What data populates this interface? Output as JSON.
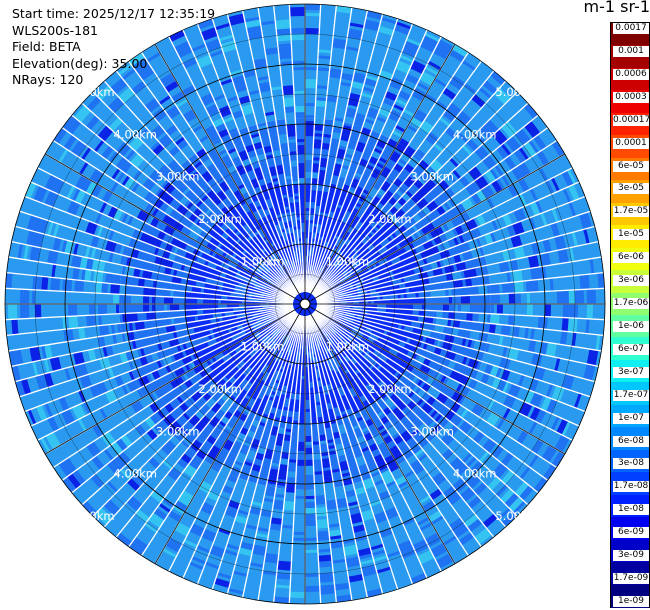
{
  "info": {
    "start_time": "Start time: 2025/12/17 12:35:19",
    "device": "WLS200s-181",
    "field": "Field: BETA",
    "elevation": "Elevation(deg): 35.00",
    "nrays": "NRays: 120"
  },
  "colorbar": {
    "units_label": "m-1 sr-1",
    "labels": [
      "0.0017",
      "0.001",
      "0.0006",
      "0.0003",
      "0.00017",
      "0.0001",
      "6e-05",
      "3e-05",
      "1.7e-05",
      "1e-05",
      "6e-06",
      "3e-06",
      "1.7e-06",
      "1e-06",
      "6e-07",
      "3e-07",
      "1.7e-07",
      "1e-07",
      "6e-08",
      "3e-08",
      "1.7e-08",
      "1e-08",
      "6e-09",
      "3e-09",
      "1.7e-09",
      "1e-09"
    ],
    "colors": [
      "#800000",
      "#a50000",
      "#cc0000",
      "#ee0000",
      "#ff2200",
      "#ff4a00",
      "#ff7a00",
      "#ffa200",
      "#ffc800",
      "#ffec00",
      "#f0ff10",
      "#c8ff38",
      "#90ff70",
      "#60ffa0",
      "#30ffd0",
      "#10f0f0",
      "#00c8ff",
      "#00a8ff",
      "#0088ff",
      "#0064ff",
      "#0040ff",
      "#0020ff",
      "#0000f0",
      "#0000c8",
      "#0000a0",
      "#000080"
    ]
  },
  "chart_data": {
    "type": "heatmap",
    "projection": "polar PPI",
    "field": "BETA",
    "elevation_deg": 35.0,
    "n_rays": 120,
    "range_max_km": 5.0,
    "range_rings_km": [
      1,
      2,
      3,
      4,
      5
    ],
    "ring_labels": [
      "1.00km",
      "2.00km",
      "3.00km",
      "4.00km",
      "5.00km"
    ],
    "dominant_values": [
      1e-07,
      6e-08,
      3e-08,
      1.7e-08
    ],
    "colors": {
      "inner": "#0a2cf5",
      "mid": "#1f73f2",
      "outer": "#2a9af0",
      "patch_dark": "#0a22e6",
      "patch_light": "#35c4f2"
    },
    "grid": true
  }
}
